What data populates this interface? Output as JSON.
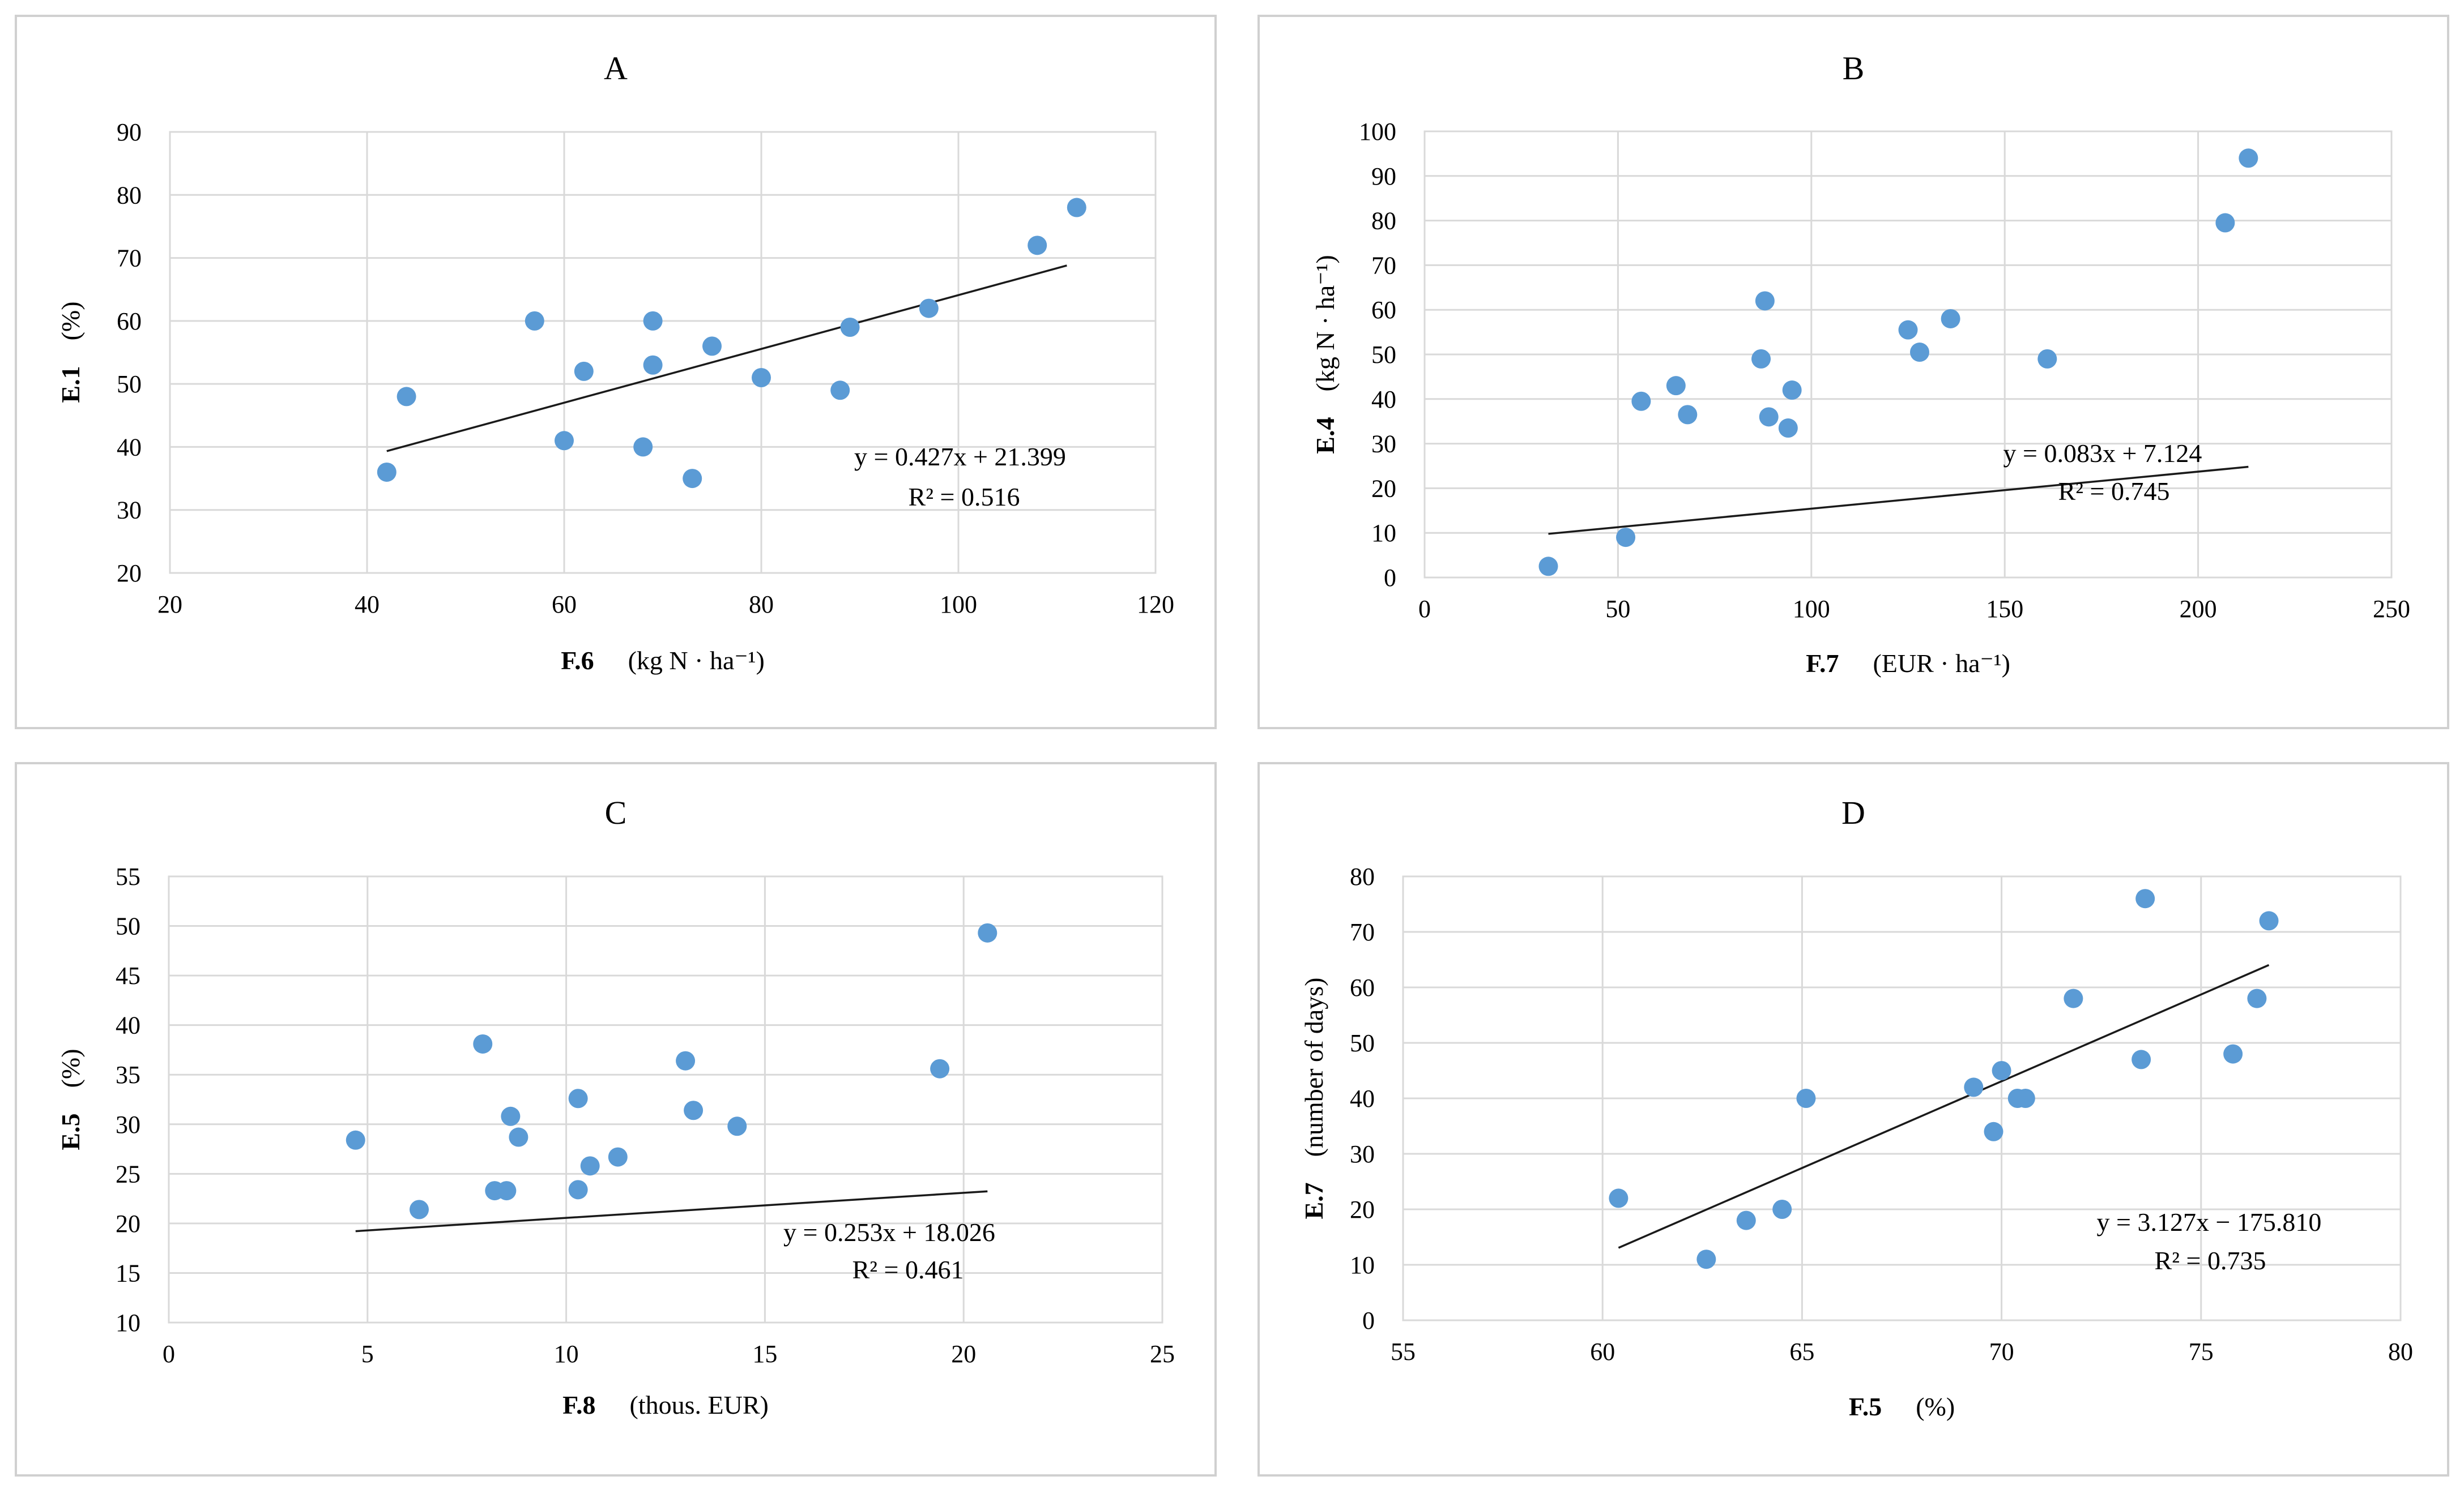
{
  "chart_data": [
    {
      "id": "A",
      "type": "scatter",
      "title": "A",
      "xlabel": "F.6",
      "xunit": "(kg N · ha⁻¹)",
      "ylabel": "E.1",
      "yunit": "(%)",
      "xlim": [
        20,
        120
      ],
      "xstep": 20,
      "ylim": [
        20,
        90
      ],
      "ystep": 10,
      "grid": true,
      "points": [
        {
          "x": 42,
          "y": 36
        },
        {
          "x": 44,
          "y": 48
        },
        {
          "x": 57,
          "y": 60
        },
        {
          "x": 60,
          "y": 41
        },
        {
          "x": 62,
          "y": 52
        },
        {
          "x": 68,
          "y": 40
        },
        {
          "x": 69,
          "y": 60
        },
        {
          "x": 69,
          "y": 53
        },
        {
          "x": 73,
          "y": 35
        },
        {
          "x": 75,
          "y": 56
        },
        {
          "x": 80,
          "y": 51
        },
        {
          "x": 88,
          "y": 49
        },
        {
          "x": 89,
          "y": 59
        },
        {
          "x": 97,
          "y": 62
        },
        {
          "x": 108,
          "y": 72
        },
        {
          "x": 112,
          "y": 78
        }
      ],
      "trendline": {
        "slope": 0.427,
        "intercept": 21.399,
        "x_from": 42,
        "x_to": 111
      },
      "equation": "y = 0.427x + 21.399",
      "r2": "R² = 0.516"
    },
    {
      "id": "B",
      "type": "scatter",
      "title": "B",
      "xlabel": "F.7",
      "xunit": "(EUR · ha⁻¹)",
      "ylabel": "E.4",
      "yunit": "(kg N · ha⁻¹)",
      "xlim": [
        0,
        250
      ],
      "xstep": 50,
      "ylim": [
        0,
        100
      ],
      "ystep": 10,
      "grid": true,
      "points": [
        {
          "x": 32,
          "y": 2.5
        },
        {
          "x": 52,
          "y": 9
        },
        {
          "x": 56,
          "y": 39.5
        },
        {
          "x": 65,
          "y": 43
        },
        {
          "x": 68,
          "y": 36.5
        },
        {
          "x": 87,
          "y": 49
        },
        {
          "x": 88,
          "y": 62
        },
        {
          "x": 89,
          "y": 36
        },
        {
          "x": 94,
          "y": 33.5
        },
        {
          "x": 95,
          "y": 42
        },
        {
          "x": 125,
          "y": 55.5
        },
        {
          "x": 128,
          "y": 50.5
        },
        {
          "x": 136,
          "y": 58
        },
        {
          "x": 161,
          "y": 49
        },
        {
          "x": 207,
          "y": 79.5
        },
        {
          "x": 213,
          "y": 94
        }
      ],
      "trendline": {
        "slope": 0.083,
        "intercept": 7.124,
        "x_from": 32,
        "x_to": 213
      },
      "equation": "y = 0.083x + 7.124",
      "r2": "R² = 0.745"
    },
    {
      "id": "C",
      "type": "scatter",
      "title": "C",
      "xlabel": "F.8",
      "xunit": "(thous. EUR)",
      "ylabel": "E.5",
      "yunit": "(%)",
      "xlim": [
        0,
        25
      ],
      "xstep": 5,
      "ylim": [
        10,
        55
      ],
      "ystep": 5,
      "grid": true,
      "points": [
        {
          "x": 4.7,
          "y": 28.4
        },
        {
          "x": 6.3,
          "y": 21.4
        },
        {
          "x": 7.9,
          "y": 38.1
        },
        {
          "x": 8.2,
          "y": 23.3
        },
        {
          "x": 8.5,
          "y": 23.3
        },
        {
          "x": 8.6,
          "y": 30.8
        },
        {
          "x": 8.8,
          "y": 28.7
        },
        {
          "x": 10.3,
          "y": 23.4
        },
        {
          "x": 10.3,
          "y": 32.6
        },
        {
          "x": 10.6,
          "y": 25.8
        },
        {
          "x": 11.3,
          "y": 26.7
        },
        {
          "x": 13.0,
          "y": 36.4
        },
        {
          "x": 13.2,
          "y": 31.4
        },
        {
          "x": 14.3,
          "y": 29.8
        },
        {
          "x": 19.4,
          "y": 35.6
        },
        {
          "x": 20.6,
          "y": 49.3
        }
      ],
      "trendline": {
        "slope": 0.253,
        "intercept": 18.026,
        "x_from": 4.7,
        "x_to": 20.6
      },
      "equation": "y = 0.253x + 18.026",
      "r2": "R² = 0.461"
    },
    {
      "id": "D",
      "type": "scatter",
      "title": "D",
      "xlabel": "F.5",
      "xunit": "(%)",
      "ylabel": "E.7",
      "yunit": "(number of days)",
      "xlim": [
        55,
        80
      ],
      "xstep": 5,
      "ylim": [
        0,
        80
      ],
      "ystep": 10,
      "grid": true,
      "points": [
        {
          "x": 60.4,
          "y": 22
        },
        {
          "x": 62.6,
          "y": 11
        },
        {
          "x": 63.6,
          "y": 18
        },
        {
          "x": 64.5,
          "y": 20
        },
        {
          "x": 65.1,
          "y": 40
        },
        {
          "x": 69.3,
          "y": 42
        },
        {
          "x": 69.8,
          "y": 34
        },
        {
          "x": 70.0,
          "y": 45
        },
        {
          "x": 70.4,
          "y": 40
        },
        {
          "x": 70.6,
          "y": 40
        },
        {
          "x": 71.8,
          "y": 58
        },
        {
          "x": 73.5,
          "y": 47
        },
        {
          "x": 73.6,
          "y": 76
        },
        {
          "x": 75.8,
          "y": 48
        },
        {
          "x": 76.4,
          "y": 58
        },
        {
          "x": 76.7,
          "y": 72
        }
      ],
      "trendline": {
        "slope": 3.127,
        "intercept": -175.81,
        "x_from": 60.4,
        "x_to": 76.7
      },
      "equation": "y = 3.127x − 175.810",
      "r2": "R² = 0.735"
    }
  ]
}
